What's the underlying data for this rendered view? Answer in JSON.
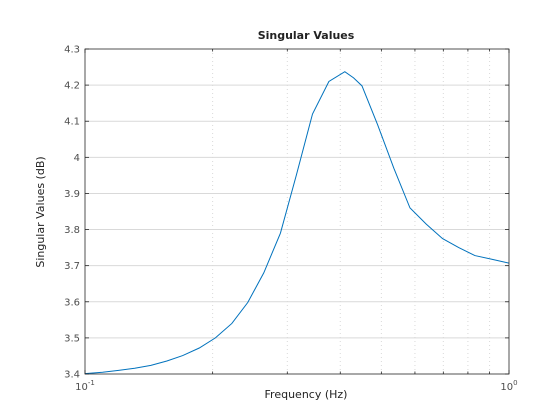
{
  "chart_data": {
    "type": "line",
    "title": "Singular Values",
    "xlabel": "Frequency (Hz)",
    "ylabel": "Singular Values (dB)",
    "xscale": "log",
    "xlim": [
      0.1,
      1
    ],
    "ylim": [
      3.4,
      4.3
    ],
    "grid": true,
    "x_ticks": [
      {
        "value": 0.1,
        "base": "10",
        "exp": "-1"
      },
      {
        "value": 1,
        "base": "10",
        "exp": "0"
      }
    ],
    "y_ticks": [
      "3.4",
      "3.5",
      "3.6",
      "3.7",
      "3.8",
      "3.9",
      "4",
      "4.1",
      "4.2",
      "4.3"
    ],
    "color": "#0072bd",
    "series": [
      {
        "x": [
          0.1,
          0.11,
          0.12,
          0.131,
          0.143,
          0.156,
          0.17,
          0.186,
          0.203,
          0.222,
          0.242,
          0.264,
          0.289,
          0.315,
          0.344,
          0.376,
          0.41,
          0.43,
          0.45,
          0.49,
          0.535,
          0.584,
          0.638,
          0.697,
          0.761,
          0.831,
          0.908,
          1.0
        ],
        "y": [
          3.401,
          3.405,
          3.41,
          3.416,
          3.424,
          3.436,
          3.451,
          3.472,
          3.5,
          3.54,
          3.598,
          3.68,
          3.79,
          3.95,
          4.12,
          4.21,
          4.237,
          4.22,
          4.198,
          4.09,
          3.97,
          3.86,
          3.815,
          3.775,
          3.75,
          3.728,
          3.718,
          3.707
        ]
      }
    ]
  }
}
